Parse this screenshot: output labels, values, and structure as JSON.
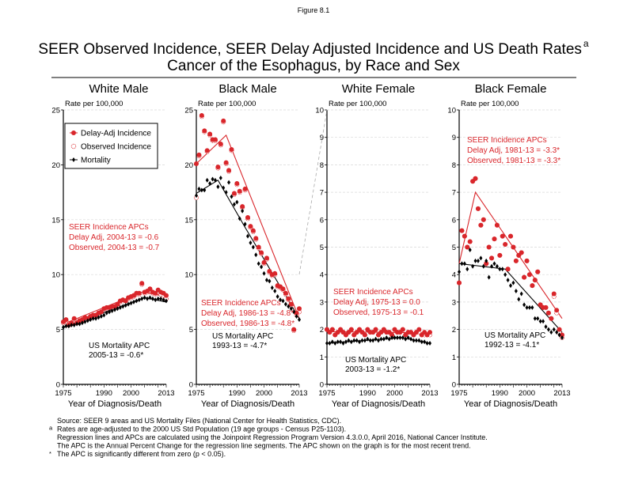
{
  "figure_label": "Figure 8.1",
  "title_line1": "SEER Observed Incidence, SEER Delay Adjusted Incidence and US Death Rates",
  "title_superscript": "a",
  "title_line2": "Cancer of the Esophagus, by Race and Sex",
  "colors": {
    "incidence": "#d9262b",
    "mortality": "#000000",
    "grid": "#d8d8d8"
  },
  "legend": {
    "placement": "top-left of White Male panel",
    "items": [
      {
        "label": "Delay-Adj Incidence",
        "marker": "filled-red-circle"
      },
      {
        "label": "Observed Incidence",
        "marker": "open-red-circle"
      },
      {
        "label": "Mortality",
        "marker": "black-diamond"
      }
    ]
  },
  "footnotes": [
    {
      "mark": "",
      "text": "Source: SEER 9 areas and US Mortality Files (National Center for Health Statistics, CDC)."
    },
    {
      "mark": "a",
      "text": "Rates are age-adjusted to the 2000 US Std Population (19 age groups - Census P25-1103)."
    },
    {
      "mark": "",
      "text": "Regression lines and APCs are calculated using the Joinpoint Regression Program Version 4.3.0.0, April 2016, National Cancer Institute."
    },
    {
      "mark": "",
      "text": "The APC is the Annual Percent Change for the regression line segments. The APC shown on the graph is for the most recent trend."
    },
    {
      "mark": "*",
      "text": "The APC is significantly different from zero (p < 0.05)."
    }
  ],
  "chart_data": [
    {
      "type": "scatter",
      "title": "White Male",
      "ylabel": "Rate per 100,000",
      "xlabel": "Year of Diagnosis/Death",
      "xlim": [
        1975,
        2013
      ],
      "ylim": [
        0,
        25
      ],
      "xticks": [
        1975,
        1990,
        2000,
        2013
      ],
      "yticks": [
        0,
        5,
        10,
        15,
        20,
        25
      ],
      "grid": true,
      "x_start": 1975,
      "series": [
        {
          "name": "Delay-Adj Incidence",
          "values": [
            5.7,
            5.9,
            5.4,
            5.6,
            6.0,
            5.6,
            5.8,
            5.9,
            6.1,
            6.0,
            6.2,
            6.3,
            6.3,
            6.5,
            6.6,
            6.9,
            7.0,
            7.0,
            7.1,
            7.1,
            7.3,
            7.6,
            7.7,
            7.6,
            7.9,
            8.0,
            8.1,
            8.3,
            8.3,
            9.2,
            8.4,
            8.5,
            8.7,
            8.4,
            8.3,
            8.6,
            8.4,
            8.3,
            8.1
          ]
        },
        {
          "name": "Observed Incidence",
          "values": [
            5.6,
            5.8,
            5.4,
            5.5,
            5.9,
            5.6,
            5.8,
            5.8,
            6.0,
            6.0,
            6.1,
            6.2,
            6.3,
            6.4,
            6.6,
            6.8,
            6.9,
            7.0,
            7.0,
            7.1,
            7.2,
            7.5,
            7.6,
            7.6,
            7.8,
            7.9,
            8.0,
            8.2,
            8.2,
            9.1,
            8.3,
            8.4,
            8.6,
            8.3,
            8.2,
            8.4,
            8.2,
            8.1,
            7.8
          ]
        },
        {
          "name": "Mortality",
          "values": [
            5.2,
            5.3,
            5.3,
            5.4,
            5.4,
            5.5,
            5.5,
            5.6,
            5.7,
            5.8,
            5.9,
            6.0,
            6.0,
            6.1,
            6.2,
            6.3,
            6.5,
            6.6,
            6.7,
            6.8,
            6.9,
            7.0,
            7.1,
            7.2,
            7.3,
            7.4,
            7.5,
            7.6,
            7.7,
            7.8,
            7.9,
            7.8,
            7.9,
            7.8,
            7.7,
            7.8,
            7.8,
            7.7,
            7.6
          ]
        }
      ],
      "regression": {
        "incidence": [
          [
            1975,
            5.5
          ],
          [
            2004,
            8.4
          ],
          [
            2013,
            8.0
          ]
        ],
        "mortality": [
          [
            1975,
            5.2
          ],
          [
            2005,
            7.9
          ],
          [
            2013,
            7.5
          ]
        ]
      },
      "annotations": {
        "incidence": [
          "SEER Incidence APCs",
          "Delay Adj, 2004-13 = -0.6",
          "Observed, 2004-13 = -0.7"
        ],
        "mortality": [
          "US Mortality APC",
          "2005-13 = -0.6*"
        ]
      }
    },
    {
      "type": "scatter",
      "title": "Black Male",
      "ylabel": "Rate per 100,000",
      "xlabel": "Year of Diagnosis/Death",
      "xlim": [
        1975,
        2013
      ],
      "ylim": [
        0,
        25
      ],
      "xticks": [
        1975,
        1990,
        2000,
        2013
      ],
      "yticks": [
        0,
        5,
        10,
        15,
        20,
        25
      ],
      "grid": true,
      "x_start": 1975,
      "series": [
        {
          "name": "Delay-Adj Incidence",
          "values": [
            20.1,
            20.9,
            24.5,
            23.1,
            21.3,
            22.8,
            22.3,
            22.3,
            19.8,
            21.9,
            24.0,
            20.2,
            19.5,
            21.4,
            17.4,
            18.3,
            17.6,
            16.2,
            17.8,
            15.2,
            14.4,
            14.0,
            13.3,
            12.5,
            12.0,
            11.1,
            11.5,
            10.3,
            10.0,
            10.1,
            9.0,
            8.9,
            8.7,
            8.3,
            7.8,
            7.3,
            5.0,
            6.5,
            6.9
          ]
        },
        {
          "name": "Observed Incidence",
          "values": [
            17.0,
            20.8,
            24.4,
            23.0,
            21.2,
            22.7,
            22.2,
            22.2,
            19.7,
            21.8,
            23.9,
            20.1,
            19.4,
            21.3,
            17.3,
            18.2,
            17.5,
            16.1,
            17.7,
            15.1,
            14.3,
            13.9,
            13.2,
            12.4,
            11.9,
            11.0,
            11.4,
            10.2,
            9.9,
            10.0,
            8.9,
            8.8,
            8.6,
            8.2,
            7.7,
            7.2,
            4.9,
            6.3,
            6.6
          ]
        },
        {
          "name": "Mortality",
          "values": [
            17.2,
            17.8,
            17.7,
            17.7,
            18.6,
            18.3,
            18.7,
            18.6,
            18.0,
            18.8,
            17.9,
            17.5,
            18.4,
            17.1,
            16.4,
            16.6,
            15.1,
            15.8,
            14.6,
            13.5,
            12.9,
            12.5,
            11.8,
            11.0,
            10.7,
            10.1,
            9.5,
            9.4,
            8.8,
            8.5,
            8.0,
            7.7,
            7.6,
            7.3,
            7.1,
            6.9,
            6.6,
            6.2,
            5.9
          ]
        }
      ],
      "regression": {
        "incidence": [
          [
            1975,
            20.1
          ],
          [
            1986,
            22.7
          ],
          [
            2013,
            6.0
          ]
        ],
        "mortality": [
          [
            1975,
            17.4
          ],
          [
            1983,
            18.6
          ],
          [
            1993,
            14.3
          ],
          [
            2013,
            6.0
          ]
        ]
      },
      "annotations": {
        "incidence": [
          "SEER Incidence APCs",
          "Delay Adj, 1986-13 = -4.8*",
          "Observed, 1986-13 = -4.8*"
        ],
        "mortality": [
          "US Mortality APC",
          "1993-13 = -4.7*"
        ]
      }
    },
    {
      "type": "scatter",
      "title": "White Female",
      "ylabel": "Rate per 100,000",
      "xlabel": "Year of Diagnosis/Death",
      "xlim": [
        1975,
        2013
      ],
      "ylim": [
        0,
        10
      ],
      "xticks": [
        1975,
        1990,
        2000,
        2013
      ],
      "yticks": [
        0,
        1,
        2,
        3,
        4,
        5,
        6,
        7,
        8,
        9,
        10
      ],
      "grid": true,
      "x_start": 1975,
      "series": [
        {
          "name": "Delay-Adj Incidence",
          "values": [
            2.0,
            1.9,
            2.0,
            1.8,
            1.9,
            2.0,
            1.9,
            1.8,
            1.9,
            2.0,
            1.8,
            1.9,
            2.0,
            1.9,
            1.8,
            2.0,
            1.9,
            1.9,
            2.0,
            1.8,
            1.9,
            2.0,
            1.9,
            1.9,
            1.8,
            2.0,
            1.9,
            1.9,
            2.0,
            1.8,
            1.9,
            1.9,
            1.8,
            1.9,
            2.0,
            1.8,
            1.9,
            1.8,
            1.9
          ]
        },
        {
          "name": "Observed Incidence",
          "values": [
            2.0,
            1.9,
            2.0,
            1.8,
            1.9,
            2.0,
            1.9,
            1.8,
            1.9,
            2.0,
            1.8,
            1.9,
            2.0,
            1.9,
            1.8,
            2.0,
            1.9,
            1.9,
            2.0,
            1.8,
            1.9,
            2.0,
            1.9,
            1.9,
            1.8,
            2.0,
            1.9,
            1.9,
            2.0,
            1.8,
            1.9,
            1.9,
            1.8,
            1.9,
            1.9,
            1.8,
            1.8,
            1.8,
            1.8
          ]
        },
        {
          "name": "Mortality",
          "values": [
            1.5,
            1.5,
            1.55,
            1.5,
            1.55,
            1.55,
            1.5,
            1.55,
            1.6,
            1.55,
            1.6,
            1.6,
            1.55,
            1.6,
            1.6,
            1.65,
            1.6,
            1.6,
            1.65,
            1.6,
            1.65,
            1.65,
            1.7,
            1.65,
            1.7,
            1.7,
            1.7,
            1.7,
            1.7,
            1.65,
            1.7,
            1.65,
            1.6,
            1.6,
            1.6,
            1.55,
            1.55,
            1.5,
            1.5
          ]
        }
      ],
      "regression": {
        "incidence": [
          [
            1975,
            1.92
          ],
          [
            2013,
            1.88
          ]
        ],
        "mortality": [
          [
            1975,
            1.5
          ],
          [
            2003,
            1.7
          ],
          [
            2013,
            1.5
          ]
        ]
      },
      "annotations": {
        "incidence": [
          "SEER Incidence APCs",
          "Delay Adj, 1975-13 = 0.0",
          "Observed, 1975-13 = -0.1"
        ],
        "mortality": [
          "US Mortality APC",
          "2003-13 = -1.2*"
        ]
      }
    },
    {
      "type": "scatter",
      "title": "Black Female",
      "ylabel": "Rate per 100,000",
      "xlabel": "Year of Diagnosis/Death",
      "xlim": [
        1975,
        2013
      ],
      "ylim": [
        0,
        10
      ],
      "xticks": [
        1975,
        1990,
        2000,
        2013
      ],
      "yticks": [
        0,
        1,
        2,
        3,
        4,
        5,
        6,
        7,
        8,
        9,
        10
      ],
      "grid": true,
      "x_start": 1975,
      "series": [
        {
          "name": "Delay-Adj Incidence",
          "values": [
            3.7,
            5.6,
            5.4,
            5.0,
            5.2,
            7.4,
            7.5,
            6.4,
            5.8,
            6.0,
            4.4,
            5.0,
            4.6,
            5.3,
            5.8,
            4.7,
            5.4,
            5.1,
            4.2,
            5.4,
            5.0,
            4.5,
            4.7,
            4.8,
            3.9,
            4.5,
            4.0,
            3.6,
            3.8,
            4.1,
            2.9,
            2.8,
            2.8,
            2.6,
            2.4,
            3.3,
            2.7,
            2.0,
            1.8
          ]
        },
        {
          "name": "Observed Incidence",
          "values": [
            3.7,
            5.6,
            5.4,
            5.0,
            5.2,
            7.4,
            7.5,
            6.4,
            5.8,
            6.0,
            4.4,
            5.0,
            4.6,
            5.3,
            5.8,
            4.7,
            5.4,
            5.1,
            4.2,
            5.4,
            5.0,
            4.5,
            4.7,
            4.8,
            3.9,
            4.5,
            4.0,
            3.6,
            3.8,
            4.1,
            2.9,
            2.8,
            2.8,
            2.6,
            2.4,
            3.2,
            2.6,
            1.9,
            1.7
          ]
        },
        {
          "name": "Mortality",
          "values": [
            4.1,
            4.4,
            4.4,
            4.2,
            4.9,
            4.3,
            4.5,
            4.5,
            4.6,
            4.3,
            4.5,
            3.9,
            4.3,
            4.4,
            4.3,
            4.2,
            4.2,
            4.0,
            3.8,
            3.6,
            3.7,
            3.4,
            3.1,
            3.3,
            2.9,
            2.8,
            2.8,
            2.8,
            2.4,
            2.4,
            2.3,
            2.3,
            2.1,
            2.0,
            1.9,
            2.0,
            1.9,
            1.8,
            1.7
          ]
        }
      ],
      "regression": {
        "incidence": [
          [
            1975,
            4.4
          ],
          [
            1981,
            7.0
          ],
          [
            2013,
            2.4
          ]
        ],
        "mortality": [
          [
            1975,
            4.4
          ],
          [
            1992,
            4.2
          ],
          [
            2013,
            1.9
          ]
        ]
      },
      "annotations": {
        "incidence": [
          "SEER Incidence APCs",
          "Delay Adj, 1981-13 = -3.3*",
          "Observed, 1981-13 = -3.3*"
        ],
        "mortality": [
          "US Mortality APC",
          "1992-13 = -4.1*"
        ]
      }
    }
  ]
}
